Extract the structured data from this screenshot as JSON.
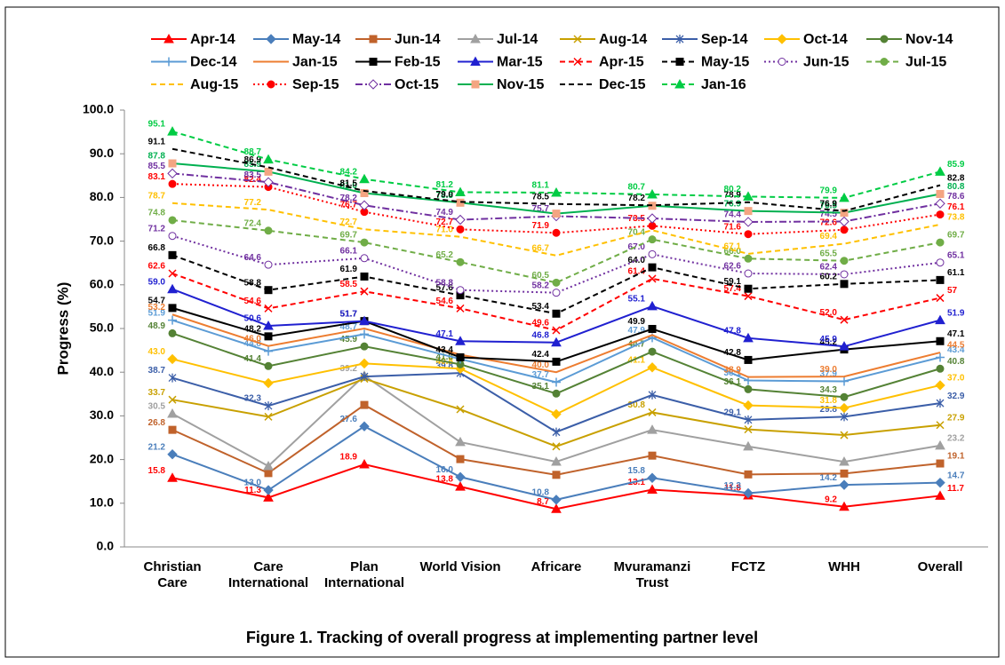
{
  "chart_data": {
    "type": "line",
    "title": "Figure 1. Tracking of overall progress at implementing partner level",
    "y_label": "Progress (%)",
    "categories": [
      "Christian\nCare",
      "Care\nInternational",
      "Plan\nInternational",
      "World Vision",
      "Africare",
      "Mvuramanzi\nTrust",
      "FCTZ",
      "WHH",
      "Overall"
    ],
    "ylim": [
      0,
      100
    ],
    "yticks": [
      {
        "value": 0,
        "label": "0.0"
      },
      {
        "value": 10,
        "label": "10.0"
      },
      {
        "value": 20,
        "label": "20.0"
      },
      {
        "value": 30,
        "label": "30.0"
      },
      {
        "value": 40,
        "label": "40.0"
      },
      {
        "value": 50,
        "label": "50.0"
      },
      {
        "value": 60,
        "label": "60.0"
      },
      {
        "value": 70,
        "label": "70.0"
      },
      {
        "value": 80,
        "label": "80.0"
      },
      {
        "value": 90,
        "label": "90.0"
      },
      {
        "value": 100,
        "label": "100.0"
      }
    ],
    "grid": false,
    "legend": "top",
    "series": [
      {
        "name": "Apr-14",
        "color": "#ff0000",
        "dash": "solid",
        "marker": "triangle",
        "values": [
          15.8,
          11.3,
          18.9,
          13.8,
          8.7,
          13.1,
          11.8,
          9.2,
          11.7
        ],
        "value_labels": [
          "15.8",
          "11.3",
          "18.9",
          "13.8",
          "8.7",
          "13.1",
          "11.8",
          "9.2",
          "11.7"
        ]
      },
      {
        "name": "May-14",
        "color": "#4a7ebb",
        "dash": "solid",
        "marker": "diamond",
        "values": [
          21.2,
          13.0,
          27.6,
          16.0,
          10.8,
          15.8,
          12.3,
          14.2,
          14.7
        ],
        "value_labels": [
          "21.2",
          "13.0",
          "27.6",
          "16.0",
          "10.8",
          "15.8",
          "12.3",
          "14.2",
          "14.7"
        ]
      },
      {
        "name": "Jun-14",
        "color": "#c0622b",
        "dash": "solid",
        "marker": "square",
        "values": [
          26.8,
          16.9,
          32.5,
          20.1,
          16.5,
          20.9,
          16.6,
          16.8,
          19.1
        ],
        "value_labels": [
          "26.8",
          null,
          null,
          null,
          null,
          null,
          null,
          null,
          "19.1"
        ]
      },
      {
        "name": "Jul-14",
        "color": "#a0a0a0",
        "dash": "solid",
        "marker": "triangle",
        "values": [
          30.5,
          18.5,
          39.2,
          24.0,
          19.5,
          26.8,
          23.0,
          19.5,
          23.2
        ],
        "value_labels": [
          "30.5",
          null,
          "39.2",
          null,
          null,
          null,
          null,
          null,
          "23.2"
        ]
      },
      {
        "name": "Aug-14",
        "color": "#c8a000",
        "dash": "solid",
        "marker": "x",
        "values": [
          33.7,
          29.8,
          38.5,
          31.5,
          23.0,
          30.8,
          26.9,
          25.6,
          27.9
        ],
        "value_labels": [
          "33.7",
          null,
          null,
          null,
          null,
          "30.8",
          null,
          null,
          "27.9"
        ]
      },
      {
        "name": "Sep-14",
        "color": "#3b5ea8",
        "dash": "solid",
        "marker": "star",
        "values": [
          38.7,
          32.3,
          39.0,
          39.8,
          26.3,
          34.8,
          29.1,
          29.8,
          32.9
        ],
        "value_labels": [
          "38.7",
          "32.3",
          null,
          "39.8",
          null,
          null,
          "29.1",
          "29.8",
          "32.9"
        ]
      },
      {
        "name": "Oct-14",
        "color": "#ffc000",
        "dash": "solid",
        "marker": "diamond",
        "values": [
          43.0,
          37.5,
          42.0,
          40.8,
          30.4,
          41.1,
          32.4,
          31.8,
          37.0
        ],
        "value_labels": [
          "43.0",
          null,
          null,
          "40.8",
          null,
          "41.1",
          null,
          "31.8",
          "37.0"
        ]
      },
      {
        "name": "Nov-14",
        "color": "#548235",
        "dash": "solid",
        "marker": "circle",
        "values": [
          48.9,
          41.4,
          45.9,
          41.8,
          35.1,
          44.7,
          36.1,
          34.3,
          40.8
        ],
        "value_labels": [
          "48.9",
          "41.4",
          "45.9",
          "41.8",
          "35.1",
          "44.7",
          "36.1",
          "34.3",
          "40.8"
        ]
      },
      {
        "name": "Dec-14",
        "color": "#5b9bd5",
        "dash": "solid",
        "marker": "plus",
        "values": [
          51.9,
          44.8,
          48.7,
          43.0,
          37.7,
          47.9,
          38.1,
          37.9,
          43.4
        ],
        "value_labels": [
          "51.9",
          "44.8",
          "48.7",
          null,
          "37.7",
          "47.9",
          "38.1",
          "37.9",
          "43.4"
        ]
      },
      {
        "name": "Jan-15",
        "color": "#ed7d31",
        "dash": "solid",
        "marker": "none",
        "values": [
          53.2,
          46.0,
          50.0,
          44.0,
          40.0,
          48.5,
          38.9,
          39.0,
          44.5
        ],
        "value_labels": [
          "53.2",
          "46.0",
          null,
          null,
          "40.0",
          null,
          "38.9",
          "39.0",
          "44.5"
        ]
      },
      {
        "name": "Feb-15",
        "color": "#000000",
        "dash": "solid",
        "marker": "square",
        "values": [
          54.7,
          48.2,
          51.7,
          43.4,
          42.4,
          49.9,
          42.8,
          45.2,
          47.1
        ],
        "value_labels": [
          "54.7",
          "48.2",
          "51.7",
          "43.4",
          "42.4",
          "49.9",
          "42.8",
          "45.2",
          "47.1"
        ]
      },
      {
        "name": "Mar-15",
        "color": "#2020d0",
        "dash": "solid",
        "marker": "triangle",
        "values": [
          59.0,
          50.6,
          51.7,
          47.1,
          46.8,
          55.1,
          47.8,
          45.9,
          51.9
        ],
        "value_labels": [
          "59.0",
          "50.6",
          "51.7",
          "47.1",
          "46.8",
          "55.1",
          "47.8",
          "45.9",
          "51.9"
        ]
      },
      {
        "name": "Apr-15",
        "color": "#ff0000",
        "dash": "dashed",
        "marker": "x",
        "values": [
          62.6,
          54.6,
          58.5,
          54.6,
          49.6,
          61.4,
          57.4,
          52.0,
          57
        ],
        "value_labels": [
          "62.6",
          "54.6",
          "58.5",
          "54.6",
          "49.6",
          "61.4",
          "57.4",
          "52.0",
          "57"
        ]
      },
      {
        "name": "May-15",
        "color": "#000000",
        "dash": "dashed",
        "marker": "square",
        "values": [
          66.8,
          58.8,
          61.9,
          57.6,
          53.4,
          64.0,
          59.1,
          60.2,
          61.1
        ],
        "value_labels": [
          "66.8",
          "58.8",
          "61.9",
          "57.6",
          "53.4",
          "64.0",
          "59.1",
          "60.2",
          "61.1"
        ]
      },
      {
        "name": "Jun-15",
        "color": "#7030a0",
        "dash": "dotted",
        "marker": "open-circle",
        "values": [
          71.2,
          64.6,
          66.1,
          58.8,
          58.2,
          67.0,
          62.6,
          62.4,
          65.1
        ],
        "value_labels": [
          "71.2",
          "64.6",
          "66.1",
          "58.8",
          "58.2",
          "67.0",
          "62.6",
          "62.4",
          "65.1"
        ]
      },
      {
        "name": "Jul-15",
        "color": "#70ad47",
        "dash": "dashed",
        "marker": "circle",
        "values": [
          74.8,
          72.4,
          69.7,
          65.2,
          60.5,
          70.4,
          66.0,
          65.5,
          69.7
        ],
        "value_labels": [
          "74.8",
          "72.4",
          "69.7",
          "65.2",
          "60.5",
          "70.4",
          "66.0",
          "65.5",
          "69.7"
        ]
      },
      {
        "name": "Aug-15",
        "color": "#ffc000",
        "dash": "dashed",
        "marker": "none",
        "values": [
          78.7,
          77.2,
          72.7,
          71.0,
          66.7,
          72.5,
          67.1,
          69.4,
          73.8
        ],
        "value_labels": [
          "78.7",
          "77.2",
          "72.7",
          "71.0",
          "66.7",
          null,
          "67.1",
          "69.4",
          "73.8"
        ]
      },
      {
        "name": "Sep-15",
        "color": "#ff0000",
        "dash": "dotted",
        "marker": "circle",
        "values": [
          83.1,
          82.4,
          76.7,
          72.7,
          71.9,
          73.5,
          71.6,
          72.6,
          76.1
        ],
        "value_labels": [
          "83.1",
          "82.4",
          "76.7",
          "72.7",
          "71.9",
          "73.5",
          "71.6",
          "72.6",
          "76.1"
        ]
      },
      {
        "name": "Oct-15",
        "color": "#7030a0",
        "dash": "dashdot",
        "marker": "open-diamond",
        "values": [
          85.5,
          83.5,
          78.2,
          74.9,
          75.7,
          75.2,
          74.4,
          74.5,
          78.6
        ],
        "value_labels": [
          "85.5",
          "83.5",
          "78.2",
          "74.9",
          "75.7",
          null,
          "74.4",
          "74.5",
          "78.6"
        ]
      },
      {
        "name": "Nov-15",
        "color": "#00b050",
        "dash": "solid",
        "marker": "square",
        "values": [
          87.8,
          85.9,
          81.0,
          78.8,
          76.3,
          78.1,
          76.9,
          76.5,
          80.8
        ],
        "value_labels": [
          "87.8",
          "85.9",
          "81.0",
          "78.8",
          null,
          null,
          "76.9",
          "76.5",
          "80.8"
        ]
      },
      {
        "name": "Dec-15",
        "color": "#000000",
        "dash": "dashed",
        "marker": "none",
        "values": [
          91.1,
          86.9,
          81.5,
          79.0,
          78.5,
          78.2,
          78.9,
          76.9,
          82.8
        ],
        "value_labels": [
          "91.1",
          "86.9",
          "81.5",
          "79.0",
          "78.5",
          "78.2",
          "78.9",
          "76.9",
          "82.8"
        ]
      },
      {
        "name": "Jan-16",
        "color": "#00cc44",
        "dash": "dashed",
        "marker": "triangle",
        "values": [
          95.1,
          88.7,
          84.2,
          81.2,
          81.1,
          80.7,
          80.2,
          79.9,
          85.9
        ],
        "value_labels": [
          "95.1",
          "88.7",
          "84.2",
          "81.2",
          "81.1",
          "80.7",
          "80.2",
          "79.9",
          "85.9"
        ]
      }
    ]
  }
}
